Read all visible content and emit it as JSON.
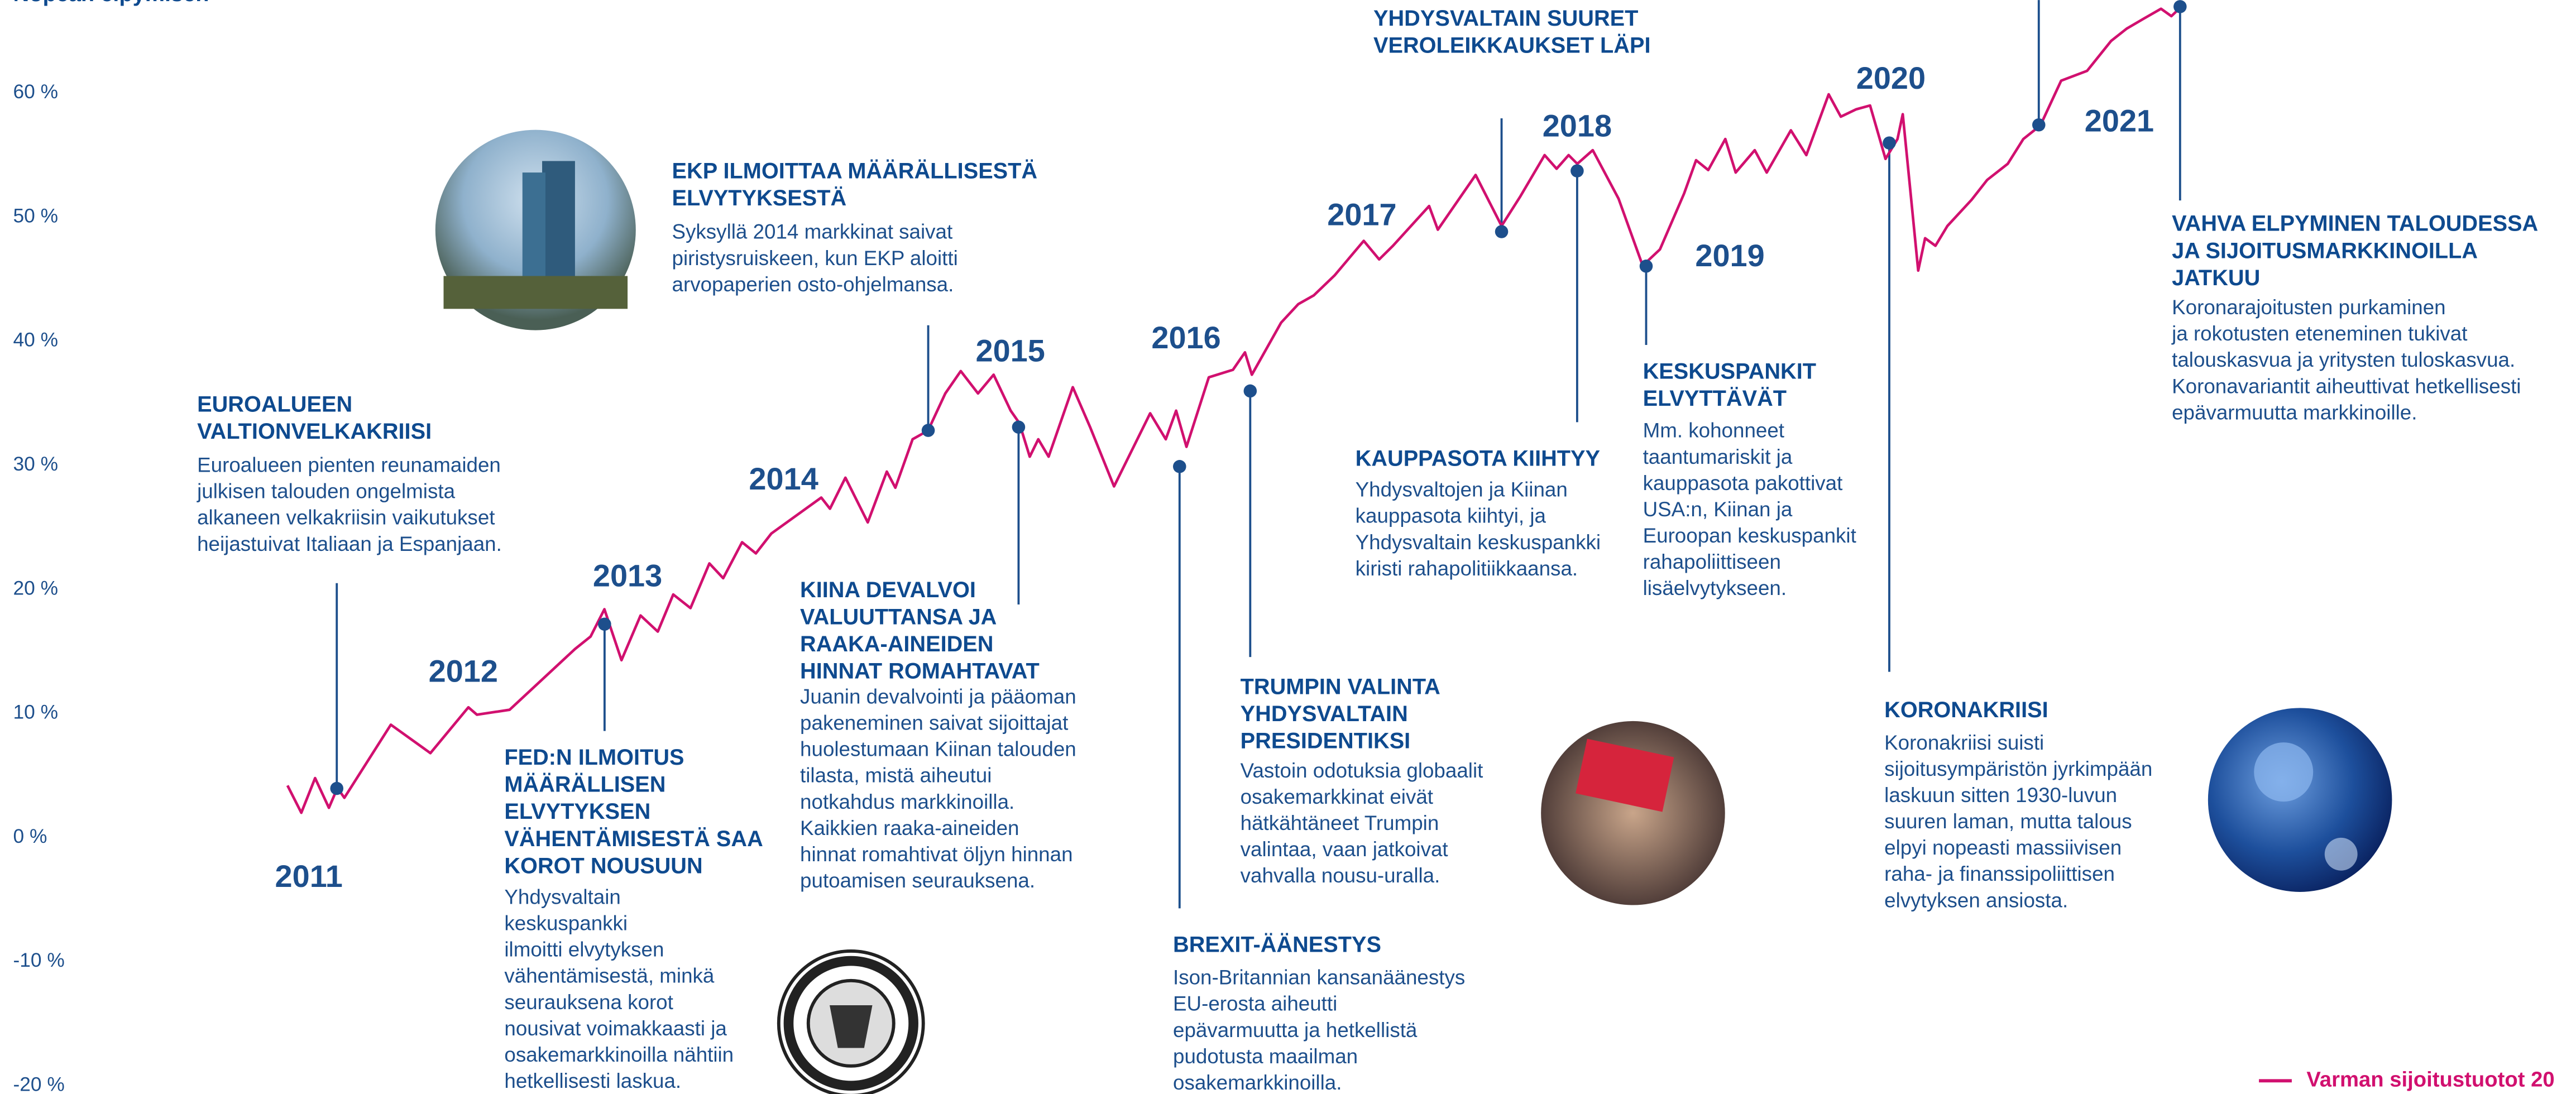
{
  "chart_data": {
    "type": "line",
    "top_note": "Nopean elpymisen",
    "ylim": [
      -20,
      67.5
    ],
    "yticks": [
      {
        "value": -20,
        "label": "-20 %"
      },
      {
        "value": -10,
        "label": "-10 %"
      },
      {
        "value": 0,
        "label": "0 %"
      },
      {
        "value": 10,
        "label": "10 %"
      },
      {
        "value": 20,
        "label": "20 %"
      },
      {
        "value": 30,
        "label": "30 %"
      },
      {
        "value": 40,
        "label": "40 %"
      },
      {
        "value": 50,
        "label": "50 %"
      },
      {
        "value": 60,
        "label": "60 %"
      }
    ],
    "xlim": [
      2011,
      2022
    ],
    "series": [
      {
        "name": "Varman sijoitustuotot 20",
        "color": "#d1106f",
        "x": [
          2011.0,
          2011.08,
          2011.16,
          2011.24,
          2011.29,
          2011.33,
          2011.6,
          2011.83,
          2012.05,
          2012.1,
          2012.29,
          2012.67,
          2012.76,
          2012.84,
          2012.94,
          2013.05,
          2013.15,
          2013.24,
          2013.34,
          2013.45,
          2013.53,
          2013.64,
          2013.72,
          2013.81,
          2014.1,
          2014.15,
          2014.24,
          2014.37,
          2014.48,
          2014.53,
          2014.63,
          2014.72,
          2014.82,
          2014.91,
          2015.01,
          2015.1,
          2015.2,
          2015.25,
          2015.31,
          2015.36,
          2015.42,
          2015.56,
          2015.66,
          2015.8,
          2016.01,
          2016.1,
          2016.16,
          2016.22,
          2016.35,
          2016.49,
          2016.56,
          2016.6,
          2016.77,
          2016.87,
          2016.96,
          2017.08,
          2017.25,
          2017.34,
          2017.42,
          2017.63,
          2017.68,
          2017.9,
          2018.05,
          2018.16,
          2018.3,
          2018.37,
          2018.44,
          2018.49,
          2018.58,
          2018.73,
          2018.87,
          2018.97,
          2019.11,
          2019.18,
          2019.25,
          2019.35,
          2019.41,
          2019.52,
          2019.59,
          2019.73,
          2019.82,
          2019.95,
          2020.02,
          2020.11,
          2020.19,
          2020.28,
          2020.35,
          2020.38,
          2020.42,
          2020.47,
          2020.51,
          2020.57,
          2020.64,
          2020.78,
          2020.87,
          2020.99,
          2021.08,
          2021.18,
          2021.3,
          2021.45,
          2021.59,
          2021.68,
          2021.78,
          2021.88,
          2021.94,
          2022.0
        ],
        "values": [
          4.2,
          2,
          4.8,
          2.4,
          4,
          3.2,
          9.1,
          6.8,
          10.5,
          9.9,
          10.3,
          15.2,
          16.2,
          18.4,
          14.3,
          17.9,
          16.6,
          19.6,
          18.5,
          22.1,
          20.9,
          23.8,
          22.9,
          24.5,
          27.4,
          26.5,
          29,
          25.4,
          29.5,
          28.2,
          32.1,
          32.8,
          35.8,
          37.6,
          35.8,
          37.3,
          34.4,
          33.4,
          30.7,
          32.1,
          30.7,
          36.3,
          33.1,
          28.3,
          34.2,
          32.1,
          34.4,
          31.5,
          37.1,
          37.7,
          39.1,
          37.3,
          41.5,
          43,
          43.7,
          45.3,
          48.1,
          46.6,
          47.7,
          50.9,
          49,
          53.4,
          49.3,
          51.7,
          55,
          53.9,
          55,
          54.3,
          55.4,
          51.5,
          46.1,
          47.4,
          51.9,
          54.6,
          53.8,
          56.3,
          53.6,
          55.4,
          53.6,
          57,
          55,
          59.9,
          58.1,
          58.7,
          59,
          54.7,
          56.3,
          58.3,
          52.7,
          45.7,
          48.3,
          47.7,
          49.3,
          51.4,
          53,
          54.3,
          56.3,
          57.4,
          61,
          61.8,
          64.2,
          65.2,
          66,
          66.8,
          66.2,
          67
        ]
      }
    ],
    "year_labels": [
      "2011",
      "2012",
      "2013",
      "2014",
      "2015",
      "2016",
      "2017",
      "2018",
      "2019",
      "2020",
      "2021"
    ],
    "annotations": [
      {
        "heading": [
          "EUROALUEEN",
          "VALTIONVELKAKRIISI"
        ],
        "body": [
          "Euroalueen pienten reunamaiden",
          "julkisen talouden ongelmista",
          "alkaneen velkakriisin vaikutukset",
          "heijastuivat Italiaan ja Espanjaan."
        ]
      },
      {
        "heading": [
          "FED:N ILMOITUS",
          "MÄÄRÄLLISEN",
          "ELVYTYKSEN",
          "VÄHENTÄMISESTÄ SAA",
          "KOROT NOUSUUN"
        ],
        "body": [
          "Yhdysvaltain",
          "keskuspankki",
          "ilmoitti elvytyksen",
          "vähentämisestä, minkä",
          "seurauksena korot",
          "nousivat voimakkaasti ja",
          "osakemarkkinoilla nähtiin",
          "hetkellisesti laskua."
        ]
      },
      {
        "heading": [
          "EKP ILMOITTAA MÄÄRÄLLISESTÄ",
          "ELVYTYKSESTÄ"
        ],
        "body": [
          "Syksyllä 2014 markkinat saivat",
          "piristysruiskeen, kun EKP aloitti",
          "arvopaperien osto-ohjelmansa."
        ]
      },
      {
        "heading": [
          "KIINA DEVALVOI",
          "VALUUTTANSA JA",
          "RAAKA-AINEIDEN",
          "HINNAT ROMAHTAVAT"
        ],
        "body": [
          "Juanin devalvointi ja pääoman",
          "pakeneminen saivat sijoittajat",
          "huolestumaan Kiinan talouden",
          "tilasta, mistä aiheutui",
          "notkahdus markkinoilla.",
          "Kaikkien raaka-aineiden",
          "hinnat romahtivat öljyn hinnan",
          "putoamisen seurauksena."
        ]
      },
      {
        "heading": [
          "BREXIT-ÄÄNESTYS"
        ],
        "body": [
          "Ison-Britannian kansanäänestys",
          "EU-erosta aiheutti",
          "epävarmuutta ja hetkellistä",
          "pudotusta maailman",
          "osakemarkkinoilla."
        ]
      },
      {
        "heading": [
          "TRUMPIN VALINTA",
          "YHDYSVALTAIN",
          "PRESIDENTIKSI"
        ],
        "body": [
          "Vastoin odotuksia globaalit",
          "osakemarkkinat eivät",
          "hätkähtäneet Trumpin",
          "valintaa, vaan jatkoivat",
          "vahvalla nousu-uralla."
        ]
      },
      {
        "heading": [
          "YHDYSVALTAIN SUURET",
          "VEROLEIKKAUKSET LÄPI"
        ],
        "body": []
      },
      {
        "heading": [
          "KAUPPASOTA KIIHTYY"
        ],
        "body": [
          "Yhdysvaltojen ja Kiinan",
          "kauppasota kiihtyi, ja",
          "Yhdysvaltain keskuspankki",
          "kiristi rahapolitiikkaansa."
        ]
      },
      {
        "heading": [
          "KESKUSPANKIT",
          "ELVYTTÄVÄT"
        ],
        "body": [
          "Mm. kohonneet",
          "taantumariskit ja",
          "kauppasota pakottivat",
          "USA:n, Kiinan ja",
          "Euroopan keskuspankit",
          "rahapoliittiseen",
          "lisäelvytykseen."
        ]
      },
      {
        "heading": [
          "KORONAKRIISI"
        ],
        "body": [
          "Koronakriisi suisti",
          "sijoitusympäristön jyrkimpään",
          "laskuun sitten 1930-luvun",
          "suuren laman, mutta talous",
          "elpyi nopeasti massiivisen",
          "raha- ja finanssipoliittisen",
          "elvytyksen ansiosta."
        ]
      },
      {
        "heading": [
          "VAHVA ELPYMINEN TALOUDESSA",
          "JA SIJOITUSMARKKINOILLA",
          "JATKUU"
        ],
        "body": [
          "Koronarajoitusten purkaminen",
          "ja rokotusten eteneminen tukivat",
          "talouskasvua ja yritysten tuloskasvua.",
          "Koronavariantit aiheuttivat hetkellisesti",
          "epävarmuutta markkinoille."
        ]
      }
    ]
  }
}
